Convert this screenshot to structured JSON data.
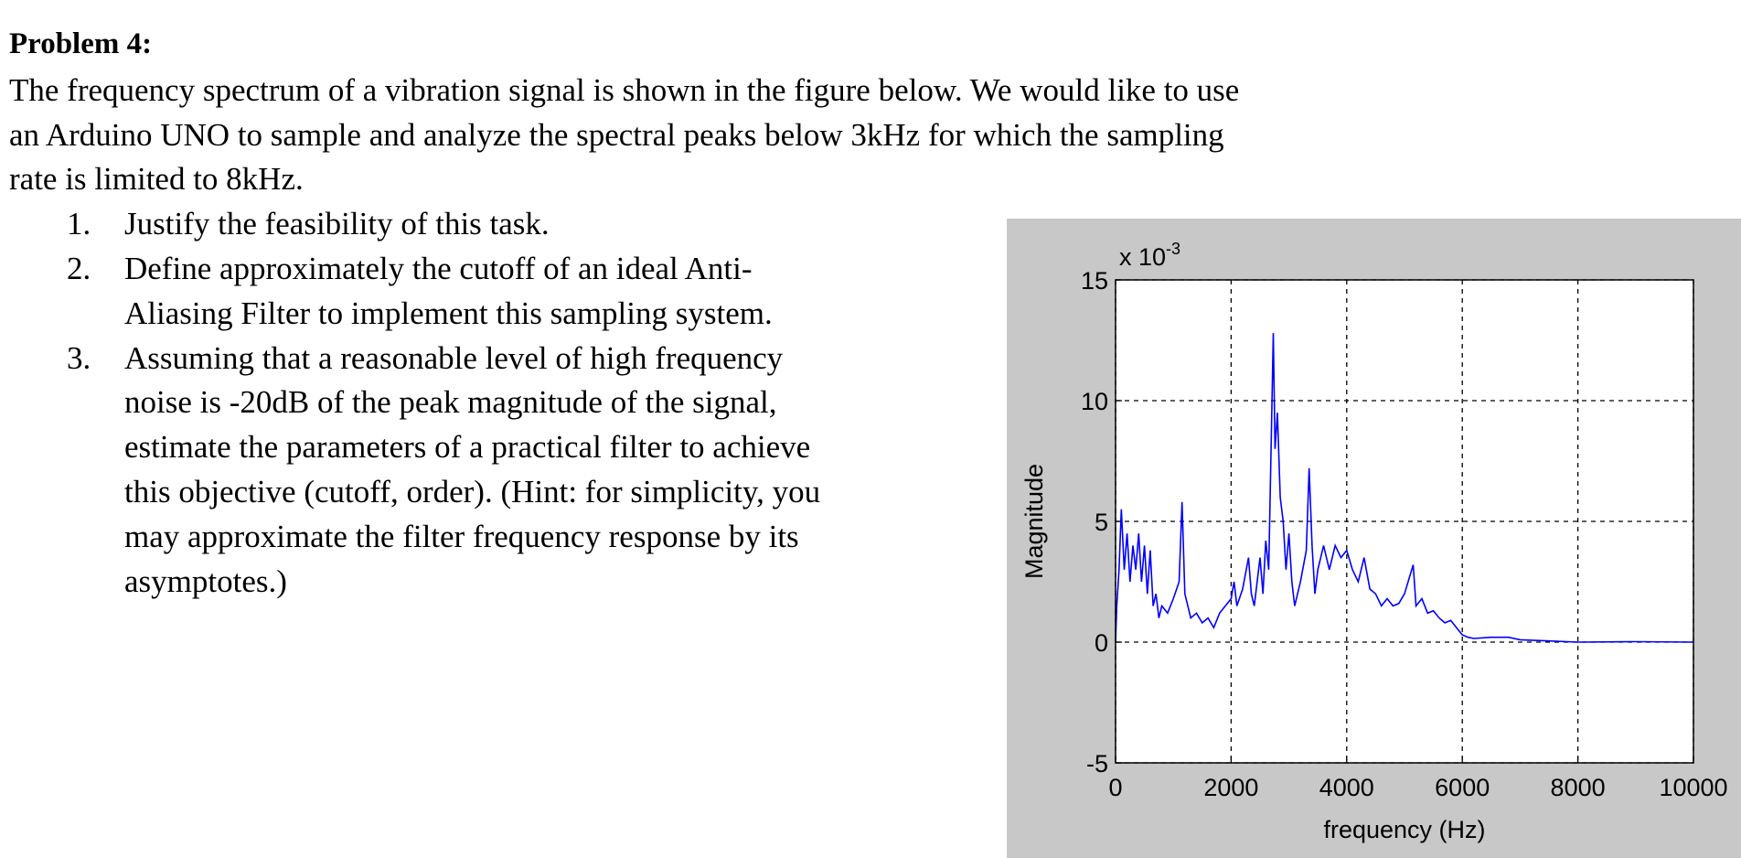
{
  "problem": {
    "title": "Problem 4:",
    "intro": [
      "The frequency spectrum of a vibration signal is shown in the figure below. We would like to use",
      "an Arduino UNO to sample and analyze the spectral peaks below 3kHz for which the sampling",
      "rate is limited to 8kHz."
    ],
    "items": [
      {
        "number": "1.",
        "lines": [
          "Justify the feasibility of this task."
        ]
      },
      {
        "number": "2.",
        "lines": [
          "Define approximately the cutoff of an ideal Anti-",
          "Aliasing Filter to implement this sampling system."
        ]
      },
      {
        "number": "3.",
        "lines": [
          "Assuming that a reasonable level of high frequency",
          "noise is -20dB of the peak magnitude of the signal,",
          "estimate the parameters of a practical filter to achieve",
          "this objective (cutoff, order). (Hint: for simplicity, you",
          "may approximate the filter frequency response by its",
          "asymptotes.)"
        ]
      }
    ]
  },
  "chart_data": {
    "type": "line",
    "xlabel": "frequency (Hz)",
    "ylabel": "Magnitude",
    "y_multiplier": {
      "base": "x 10",
      "exponent": "-3"
    },
    "xlim": [
      0,
      10000
    ],
    "ylim": [
      -5,
      15
    ],
    "xticks": [
      0,
      2000,
      4000,
      6000,
      8000,
      10000
    ],
    "yticks": [
      -5,
      0,
      5,
      10,
      15
    ],
    "grid": true,
    "x": [
      0,
      20,
      60,
      100,
      150,
      200,
      250,
      300,
      350,
      400,
      450,
      500,
      550,
      600,
      650,
      700,
      750,
      800,
      900,
      1000,
      1100,
      1150,
      1200,
      1300,
      1400,
      1500,
      1600,
      1700,
      1800,
      1900,
      2000,
      2050,
      2100,
      2200,
      2300,
      2350,
      2400,
      2500,
      2550,
      2600,
      2650,
      2700,
      2730,
      2760,
      2800,
      2850,
      2900,
      2950,
      3000,
      3050,
      3100,
      3200,
      3300,
      3350,
      3400,
      3450,
      3500,
      3600,
      3700,
      3800,
      3900,
      4000,
      4100,
      4200,
      4300,
      4400,
      4500,
      4600,
      4700,
      4800,
      4900,
      5000,
      5100,
      5150,
      5200,
      5300,
      5400,
      5500,
      5600,
      5700,
      5800,
      5900,
      6000,
      6100,
      6200,
      6500,
      6800,
      7000,
      7500,
      8000,
      9000,
      10000
    ],
    "series": [
      {
        "name": "spectrum",
        "color": "#0000ff",
        "values": [
          0,
          1.5,
          3,
          5.5,
          3,
          4.5,
          2.5,
          4,
          3,
          4.5,
          2.5,
          4,
          2,
          3.8,
          1.5,
          2,
          1,
          1.5,
          1.2,
          1.8,
          2.5,
          5.8,
          2,
          1,
          1.2,
          0.8,
          1,
          0.6,
          1.2,
          1.5,
          1.8,
          2.5,
          1.5,
          2.2,
          3.5,
          2,
          1.5,
          3.5,
          2,
          4.2,
          3,
          9,
          12.8,
          8,
          9.5,
          6,
          5,
          3,
          4.5,
          2.5,
          1.5,
          2.5,
          3.8,
          7.2,
          4,
          2,
          3,
          4,
          3,
          4,
          3.5,
          3.8,
          3,
          2.5,
          3.5,
          2.2,
          2,
          1.5,
          1.8,
          1.5,
          1.6,
          2,
          2.8,
          3.2,
          1.5,
          1.8,
          1.2,
          1.3,
          1,
          0.8,
          0.9,
          0.6,
          0.3,
          0.2,
          0.15,
          0.2,
          0.2,
          0.1,
          0.05,
          0,
          0.02,
          0
        ]
      }
    ]
  }
}
